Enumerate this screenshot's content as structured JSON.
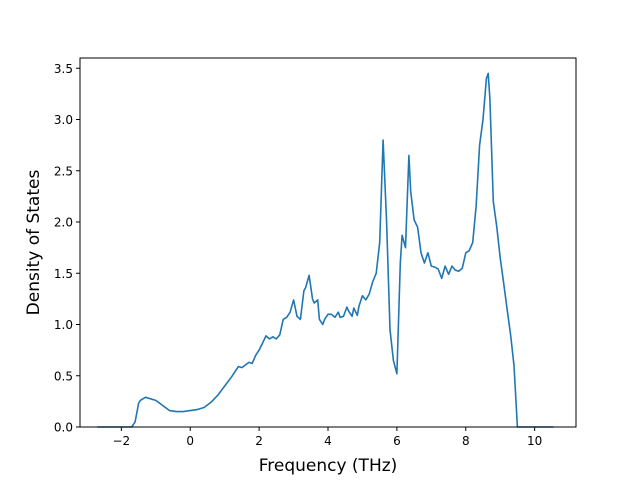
{
  "chart_data": {
    "type": "line",
    "title": "",
    "xlabel": "Frequency (THz)",
    "ylabel": "Density of States",
    "xlim": [
      -3.2,
      11.2
    ],
    "ylim": [
      0,
      3.6
    ],
    "xticks": [
      -2,
      0,
      2,
      4,
      6,
      8,
      10
    ],
    "xtick_labels": [
      "−2",
      "0",
      "2",
      "4",
      "6",
      "8",
      "10"
    ],
    "yticks": [
      0.0,
      0.5,
      1.0,
      1.5,
      2.0,
      2.5,
      3.0,
      3.5
    ],
    "ytick_labels": [
      "0.0",
      "0.5",
      "1.0",
      "1.5",
      "2.0",
      "2.5",
      "3.0",
      "3.5"
    ],
    "grid": false,
    "series": [
      {
        "color": "#1f77b4",
        "x": [
          -2.7,
          -1.9,
          -1.7,
          -1.6,
          -1.5,
          -1.45,
          -1.3,
          -1.2,
          -1.0,
          -0.8,
          -0.6,
          -0.4,
          -0.2,
          0.0,
          0.2,
          0.4,
          0.6,
          0.8,
          1.0,
          1.2,
          1.4,
          1.5,
          1.7,
          1.8,
          1.9,
          2.0,
          2.1,
          2.2,
          2.3,
          2.4,
          2.5,
          2.6,
          2.7,
          2.8,
          2.9,
          3.0,
          3.1,
          3.2,
          3.3,
          3.35,
          3.45,
          3.55,
          3.6,
          3.7,
          3.75,
          3.85,
          3.9,
          4.0,
          4.1,
          4.2,
          4.3,
          4.35,
          4.45,
          4.55,
          4.6,
          4.7,
          4.75,
          4.85,
          4.9,
          5.0,
          5.1,
          5.2,
          5.3,
          5.4,
          5.5,
          5.55,
          5.6,
          5.7,
          5.8,
          5.9,
          6.0,
          6.1,
          6.15,
          6.25,
          6.3,
          6.35,
          6.4,
          6.5,
          6.6,
          6.7,
          6.8,
          6.9,
          7.0,
          7.1,
          7.2,
          7.3,
          7.4,
          7.5,
          7.6,
          7.7,
          7.8,
          7.9,
          8.0,
          8.1,
          8.2,
          8.3,
          8.4,
          8.5,
          8.6,
          8.65,
          8.7,
          8.8,
          8.9,
          9.0,
          9.1,
          9.2,
          9.3,
          9.4,
          9.5,
          9.6,
          10.0,
          10.55
        ],
        "y": [
          0.0,
          0.0,
          0.0,
          0.05,
          0.23,
          0.26,
          0.29,
          0.28,
          0.26,
          0.21,
          0.16,
          0.15,
          0.15,
          0.16,
          0.17,
          0.19,
          0.24,
          0.31,
          0.4,
          0.49,
          0.59,
          0.58,
          0.63,
          0.62,
          0.7,
          0.75,
          0.82,
          0.89,
          0.86,
          0.88,
          0.86,
          0.9,
          1.05,
          1.07,
          1.12,
          1.24,
          1.08,
          1.05,
          1.33,
          1.36,
          1.48,
          1.25,
          1.21,
          1.24,
          1.05,
          1.0,
          1.05,
          1.1,
          1.1,
          1.07,
          1.12,
          1.07,
          1.08,
          1.17,
          1.13,
          1.08,
          1.16,
          1.09,
          1.18,
          1.28,
          1.24,
          1.3,
          1.42,
          1.5,
          1.8,
          2.3,
          2.8,
          2.0,
          0.95,
          0.65,
          0.52,
          1.6,
          1.87,
          1.75,
          2.2,
          2.65,
          2.3,
          2.02,
          1.95,
          1.7,
          1.6,
          1.7,
          1.57,
          1.56,
          1.54,
          1.45,
          1.57,
          1.49,
          1.57,
          1.53,
          1.52,
          1.55,
          1.7,
          1.72,
          1.8,
          2.15,
          2.75,
          3.0,
          3.4,
          3.45,
          3.2,
          2.2,
          1.95,
          1.65,
          1.4,
          1.15,
          0.9,
          0.6,
          0.0,
          0.0,
          0.0,
          0.0
        ]
      }
    ]
  }
}
